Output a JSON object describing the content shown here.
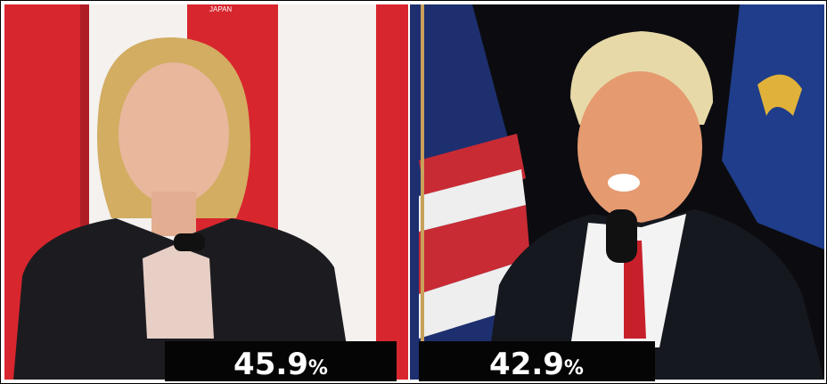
{
  "broadcast": {
    "corner_text": "JAPAN"
  },
  "panels": [
    {
      "value": "45.9",
      "unit": "%"
    },
    {
      "value": "42.9",
      "unit": "%"
    }
  ]
}
